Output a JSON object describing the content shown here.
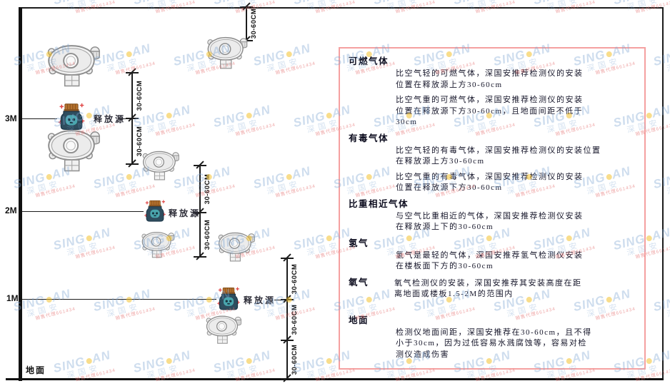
{
  "diagram": {
    "height_labels": {
      "h3": "3M",
      "h2": "2M",
      "h1": "1M"
    },
    "ground_label": "地面",
    "source_label": "释放源",
    "dim_label": "30-60CM"
  },
  "panel": {
    "border_color": "#f5a0a0",
    "sections": [
      {
        "title": "可燃气体",
        "paragraphs": [
          [
            "比空气轻的可燃气体，深国安推荐检测仪的安装",
            "位置在释放源上方30-60cm"
          ],
          [
            "比空气重的可燃气体，深国安推荐检测仪的安装",
            "位置在释放源下方30-60cm，且地面间距不低于",
            "30cm"
          ]
        ]
      },
      {
        "title": "有毒气体",
        "paragraphs": [
          [
            "比空气轻的有毒气体，深国安推荐检测仪的安装位置",
            "在释放源上方30-60cm"
          ],
          [
            "比空气重的有毒气体，深国安推荐检测仪的安装",
            "位置在释放源下方30-60cm"
          ]
        ]
      },
      {
        "title": "比重相近气体",
        "paragraphs": [
          [
            "与空气比重相近的气体，深国安推荐检测仪安装",
            "在释放源上下的30-60cm"
          ]
        ]
      },
      {
        "title": "氢气",
        "paragraphs": [
          [
            "氢气是最轻的气体，深国安推荐氢气检测仪安装",
            "在楼板面下方的30-60cm"
          ]
        ]
      },
      {
        "title": "氧气",
        "paragraphs": [
          [
            "氧气检测仪的安装，深国安推荐其安装高度在距",
            "离地面或楼板1.5-2M的范围内"
          ]
        ]
      },
      {
        "title": "地面",
        "paragraphs": [
          [
            "检测仪地面间距，深国安推荐在30-60cm，且不得",
            "小于30cm，因为过低容易水溅腐蚀等，容易对检",
            "测仪造成伤害"
          ]
        ]
      }
    ]
  },
  "watermark": {
    "brand_left": "SING",
    "brand_right": "AN",
    "cn": "深国安",
    "agent": "销售代理661434"
  },
  "colors": {
    "panel_border": "#f5a0a0",
    "source_body": "#2e4d5e",
    "source_cap": "#b5722e",
    "source_emblem": "#4aa6ae",
    "sparkle_red": "#e04545",
    "watermark_blue": "#7da5d2",
    "watermark_dot_yellow": "#f2c12e",
    "line_black": "#1c1c1c"
  }
}
